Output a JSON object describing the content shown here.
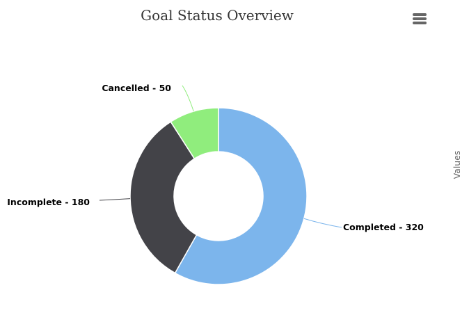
{
  "chart_data": {
    "type": "pie",
    "title": "Goal Status Overview",
    "ylabel": "Values",
    "donut": true,
    "categories": [
      "Completed",
      "Incomplete",
      "Cancelled"
    ],
    "values": [
      320,
      180,
      50
    ],
    "colors": [
      "#7cb5ec",
      "#434348",
      "#90ed7d"
    ],
    "labels": [
      "Completed - 320",
      "Incomplete - 180",
      "Cancelled - 50"
    ]
  },
  "menu": {
    "icon": "hamburger-menu-icon"
  }
}
